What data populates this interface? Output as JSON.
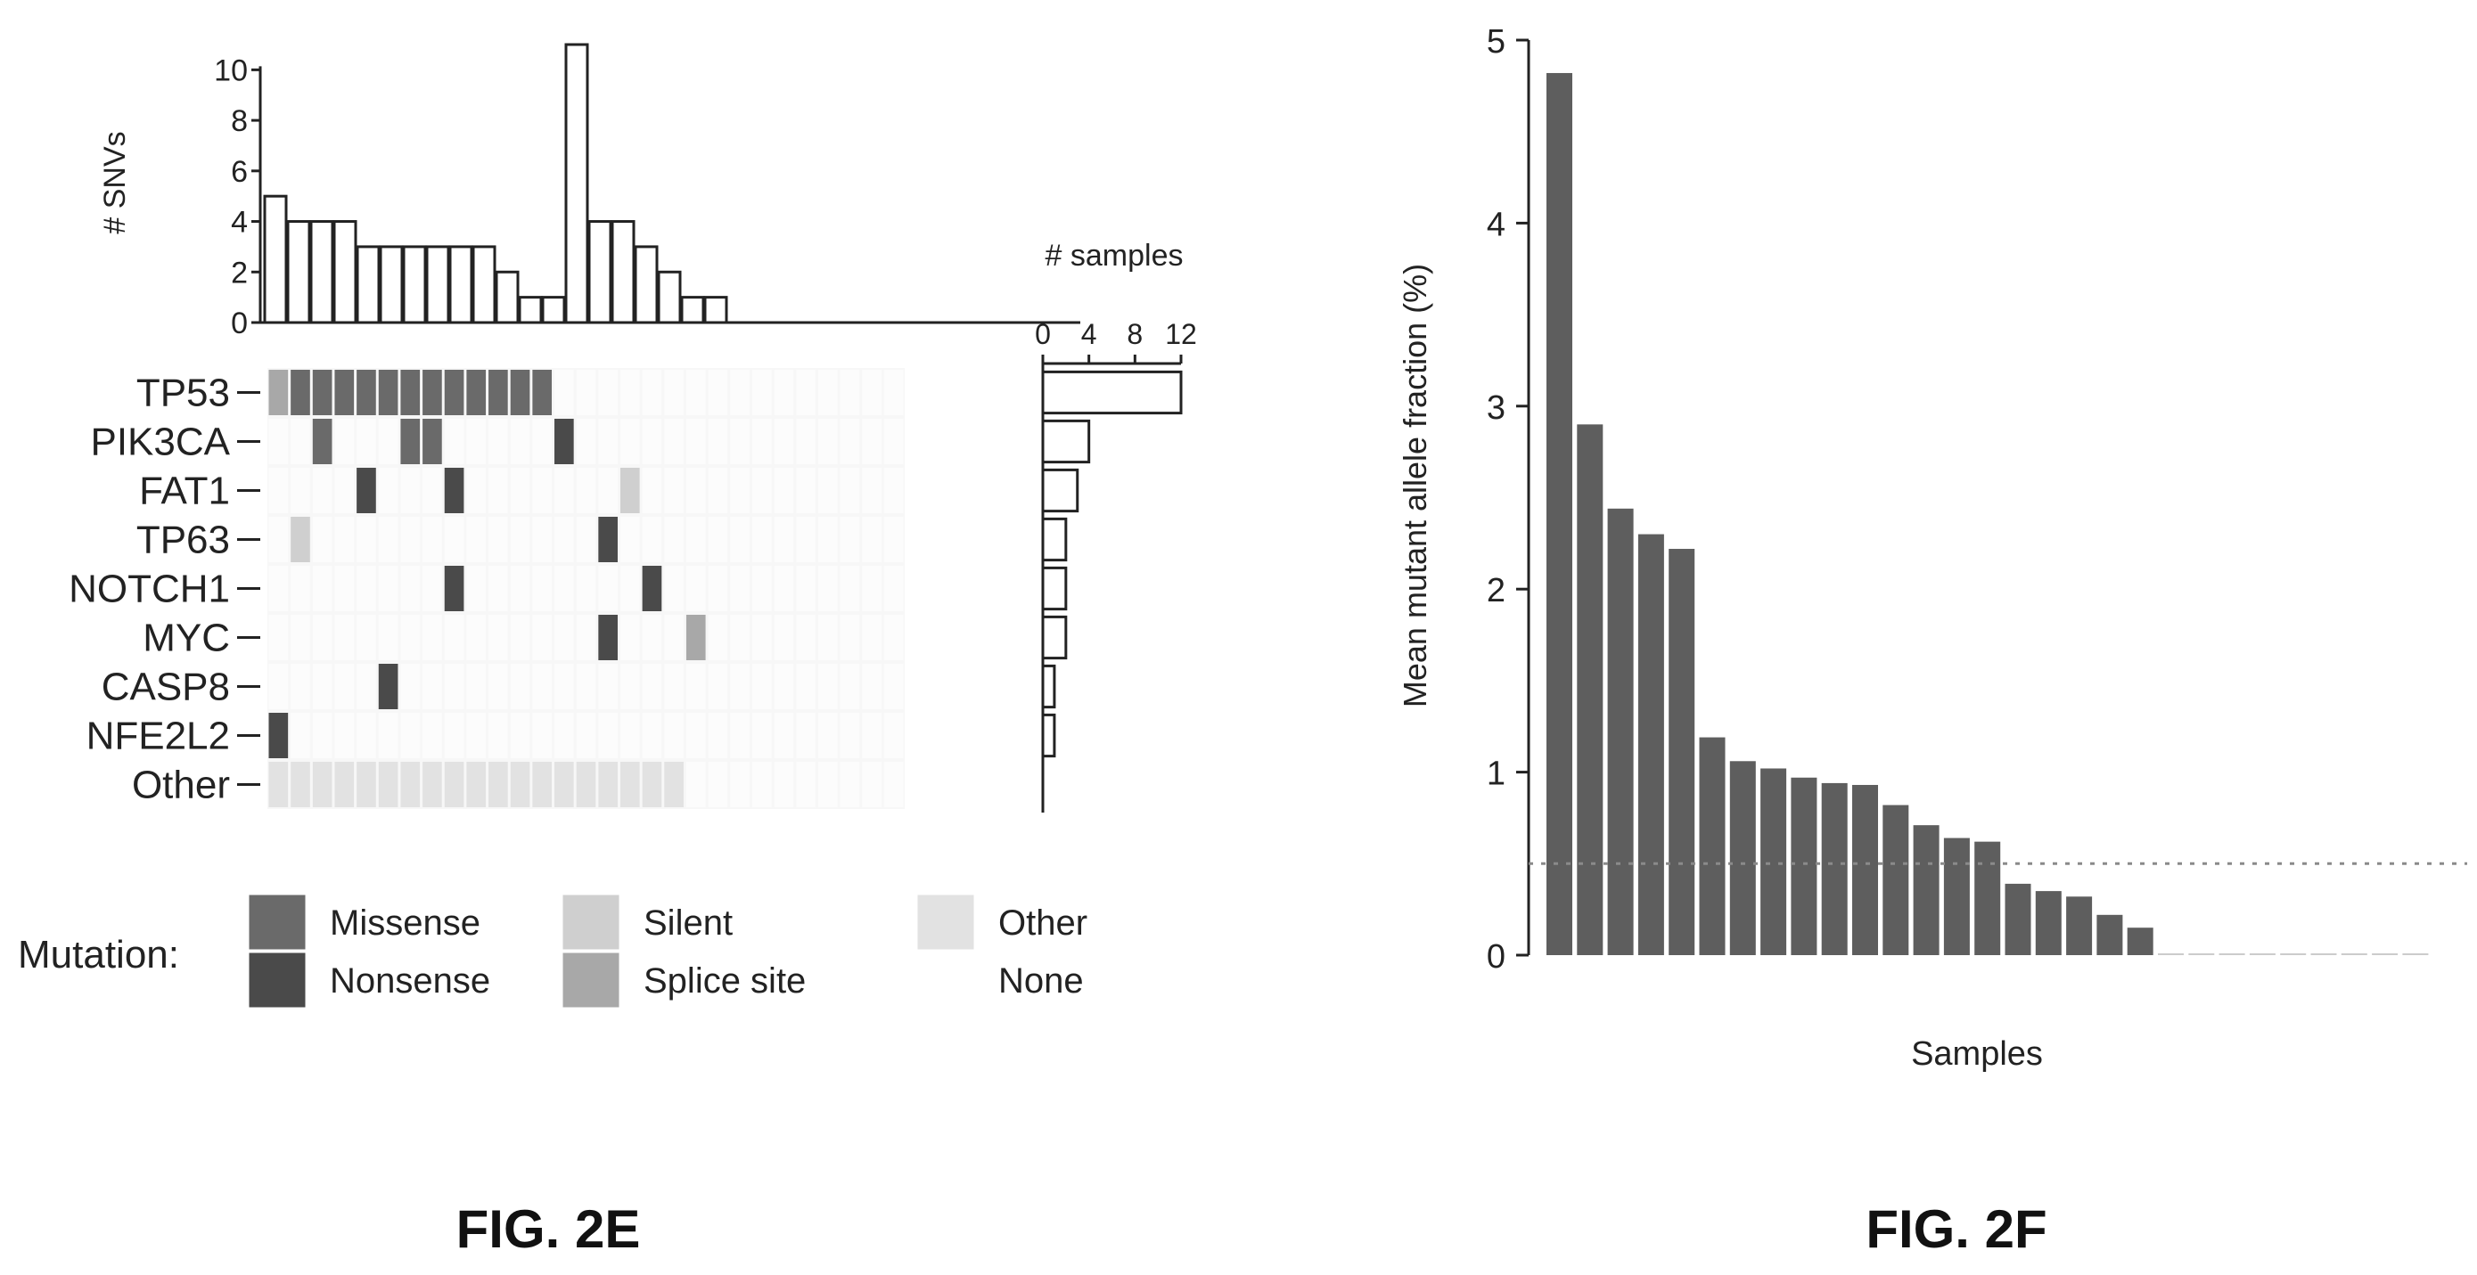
{
  "figures": {
    "left_caption": "FIG. 2E",
    "right_caption": "FIG. 2F"
  },
  "colors": {
    "missense": "#6a6a6a",
    "nonsense": "#4a4a4a",
    "silent": "#cfcfcf",
    "splice_site": "#a8a8a8",
    "other": "#e2e2e2",
    "none": "#ffffff",
    "bar_fill": "#5e5e5e",
    "axis": "#222222"
  },
  "chart_data": [
    {
      "type": "heatmap",
      "name": "oncoplot",
      "top_bar": {
        "ylabel": "# SNVs",
        "yticks": [
          "0",
          "2",
          "4",
          "6",
          "8",
          "10"
        ],
        "ylim": [
          0,
          11
        ],
        "values": [
          5,
          4,
          4,
          4,
          3,
          3,
          3,
          3,
          3,
          3,
          2,
          1,
          1,
          11,
          4,
          4,
          3,
          2,
          1,
          1,
          0,
          0,
          0,
          0,
          0,
          0,
          0,
          0,
          0,
          0,
          0,
          0,
          0,
          0,
          0
        ]
      },
      "side_bar": {
        "xlabel": "# samples",
        "xticks": [
          "0",
          "4",
          "8",
          "12"
        ],
        "xlim": [
          0,
          12
        ],
        "values": [
          12,
          4,
          3,
          2,
          2,
          2,
          1,
          1,
          0
        ]
      },
      "genes": [
        "TP53",
        "PIK3CA",
        "FAT1",
        "TP63",
        "NOTCH1",
        "MYC",
        "CASP8",
        "NFE2L2",
        "Other"
      ],
      "n_samples": 29,
      "mutations": [
        {
          "gene": 0,
          "sample": 0,
          "type": "splice_site"
        },
        {
          "gene": 0,
          "sample": 1,
          "type": "missense"
        },
        {
          "gene": 0,
          "sample": 2,
          "type": "missense"
        },
        {
          "gene": 0,
          "sample": 3,
          "type": "missense"
        },
        {
          "gene": 0,
          "sample": 4,
          "type": "missense"
        },
        {
          "gene": 0,
          "sample": 5,
          "type": "missense"
        },
        {
          "gene": 0,
          "sample": 6,
          "type": "missense"
        },
        {
          "gene": 0,
          "sample": 7,
          "type": "missense"
        },
        {
          "gene": 0,
          "sample": 8,
          "type": "missense"
        },
        {
          "gene": 0,
          "sample": 9,
          "type": "missense"
        },
        {
          "gene": 0,
          "sample": 10,
          "type": "missense"
        },
        {
          "gene": 0,
          "sample": 11,
          "type": "missense"
        },
        {
          "gene": 0,
          "sample": 12,
          "type": "missense"
        },
        {
          "gene": 1,
          "sample": 2,
          "type": "missense"
        },
        {
          "gene": 1,
          "sample": 6,
          "type": "missense"
        },
        {
          "gene": 1,
          "sample": 7,
          "type": "missense"
        },
        {
          "gene": 1,
          "sample": 13,
          "type": "nonsense"
        },
        {
          "gene": 2,
          "sample": 4,
          "type": "nonsense"
        },
        {
          "gene": 2,
          "sample": 8,
          "type": "nonsense"
        },
        {
          "gene": 2,
          "sample": 16,
          "type": "silent"
        },
        {
          "gene": 3,
          "sample": 1,
          "type": "silent"
        },
        {
          "gene": 3,
          "sample": 15,
          "type": "nonsense"
        },
        {
          "gene": 4,
          "sample": 8,
          "type": "nonsense"
        },
        {
          "gene": 4,
          "sample": 17,
          "type": "nonsense"
        },
        {
          "gene": 5,
          "sample": 15,
          "type": "nonsense"
        },
        {
          "gene": 5,
          "sample": 19,
          "type": "splice_site"
        },
        {
          "gene": 6,
          "sample": 5,
          "type": "nonsense"
        },
        {
          "gene": 7,
          "sample": 0,
          "type": "nonsense"
        }
      ],
      "other_samples": [
        0,
        1,
        2,
        3,
        4,
        5,
        6,
        7,
        8,
        9,
        10,
        11,
        12,
        13,
        14,
        15,
        16,
        17,
        18
      ],
      "legend": {
        "title": "Mutation:",
        "items": [
          {
            "label": "Missense",
            "key": "missense"
          },
          {
            "label": "Nonsense",
            "key": "nonsense"
          },
          {
            "label": "Silent",
            "key": "silent"
          },
          {
            "label": "Splice site",
            "key": "splice_site"
          },
          {
            "label": "Other",
            "key": "other"
          },
          {
            "label": "None",
            "key": "none"
          }
        ]
      }
    },
    {
      "type": "bar",
      "name": "allele-fraction",
      "xlabel": "Samples",
      "ylabel": "Mean mutant allele fraction (%)",
      "ylim": [
        0,
        5
      ],
      "yticks": [
        "0",
        "1",
        "2",
        "3",
        "4",
        "5"
      ],
      "threshold": 0.5,
      "values": [
        4.82,
        2.9,
        2.44,
        2.3,
        2.22,
        1.19,
        1.06,
        1.02,
        0.97,
        0.94,
        0.93,
        0.82,
        0.71,
        0.64,
        0.62,
        0.39,
        0.35,
        0.32,
        0.22,
        0.15,
        0.01,
        0.01,
        0.01,
        0.01,
        0.01,
        0.01,
        0.01,
        0.01,
        0.01
      ]
    }
  ]
}
